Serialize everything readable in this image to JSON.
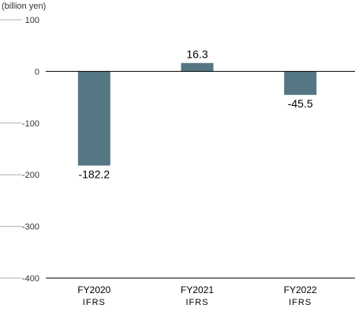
{
  "chart_data": {
    "type": "bar",
    "unit_label": "(billion yen)",
    "categories": [
      "FY2020",
      "FY2021",
      "FY2022"
    ],
    "category_sublabels": [
      "IFRS",
      "IFRS",
      "IFRS"
    ],
    "values": [
      -182.2,
      16.3,
      -45.5
    ],
    "value_labels": [
      "-182.2",
      "16.3",
      "-45.5"
    ],
    "y_ticks": [
      100,
      0,
      -100,
      -200,
      -300,
      -400
    ],
    "y_tick_labels": [
      "100",
      "0",
      "-100",
      "-200",
      "-300",
      "-400"
    ],
    "ylim": [
      -400,
      100
    ],
    "grid": false,
    "bar_color": "#557784",
    "axis_color": "#000000",
    "tick_color": "#b0b0b0"
  }
}
